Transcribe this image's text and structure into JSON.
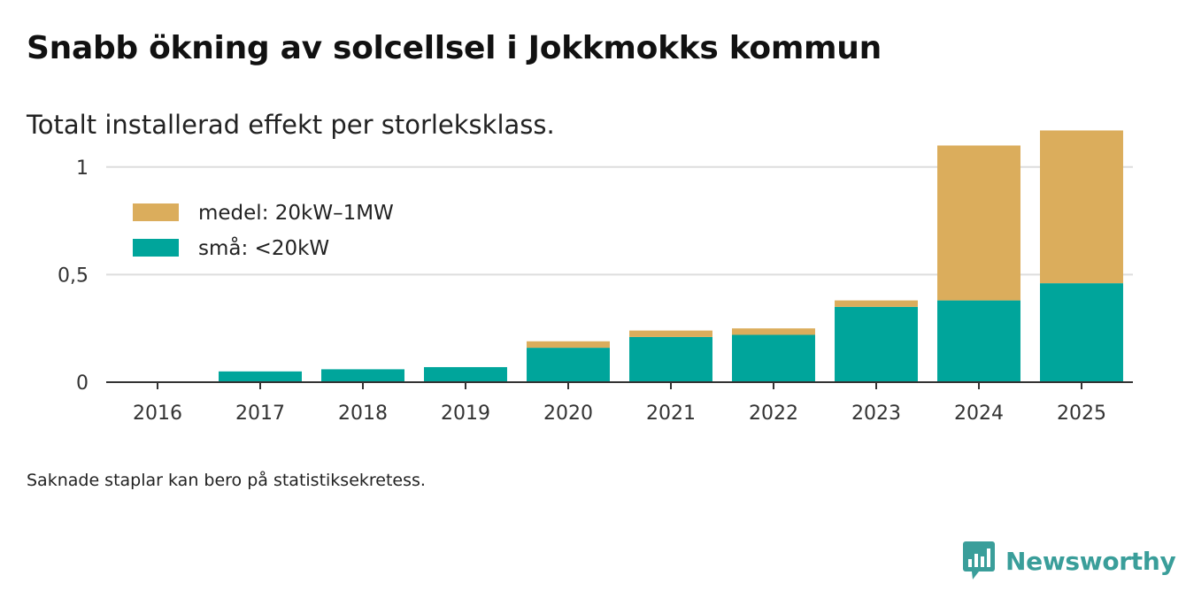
{
  "header": {
    "title": "Snabb ökning av solcellsel i Jokkmokks kommun",
    "subtitle": "Totalt installerad effekt per storleksklass."
  },
  "footer": {
    "note": "Saknade staplar kan bero på statistiksekretess.",
    "brand": "Newsworthy"
  },
  "colors": {
    "medel": "#dbad5c",
    "sma": "#00a59b",
    "grid": "#dddddd",
    "axis": "#333333",
    "brand": "#3a9e9a"
  },
  "chart_data": {
    "type": "bar",
    "stacked": true,
    "categories": [
      "2016",
      "2017",
      "2018",
      "2019",
      "2020",
      "2021",
      "2022",
      "2023",
      "2024",
      "2025"
    ],
    "series": [
      {
        "name": "små: <20kW",
        "color": "#00a59b",
        "values": [
          0,
          0.05,
          0.06,
          0.07,
          0.16,
          0.21,
          0.22,
          0.35,
          0.38,
          0.46
        ]
      },
      {
        "name": "medel: 20kW–1MW",
        "color": "#dbad5c",
        "values": [
          0,
          0,
          0,
          0,
          0.03,
          0.03,
          0.03,
          0.03,
          0.72,
          0.71
        ]
      }
    ],
    "legend_order": [
      "medel: 20kW–1MW",
      "små: <20kW"
    ],
    "y_ticks": [
      0,
      0.5,
      1
    ],
    "y_tick_labels": [
      "0",
      "0,5",
      "1"
    ],
    "ylim": [
      0,
      1.25
    ],
    "grid": true,
    "legend_position": "top-left"
  }
}
